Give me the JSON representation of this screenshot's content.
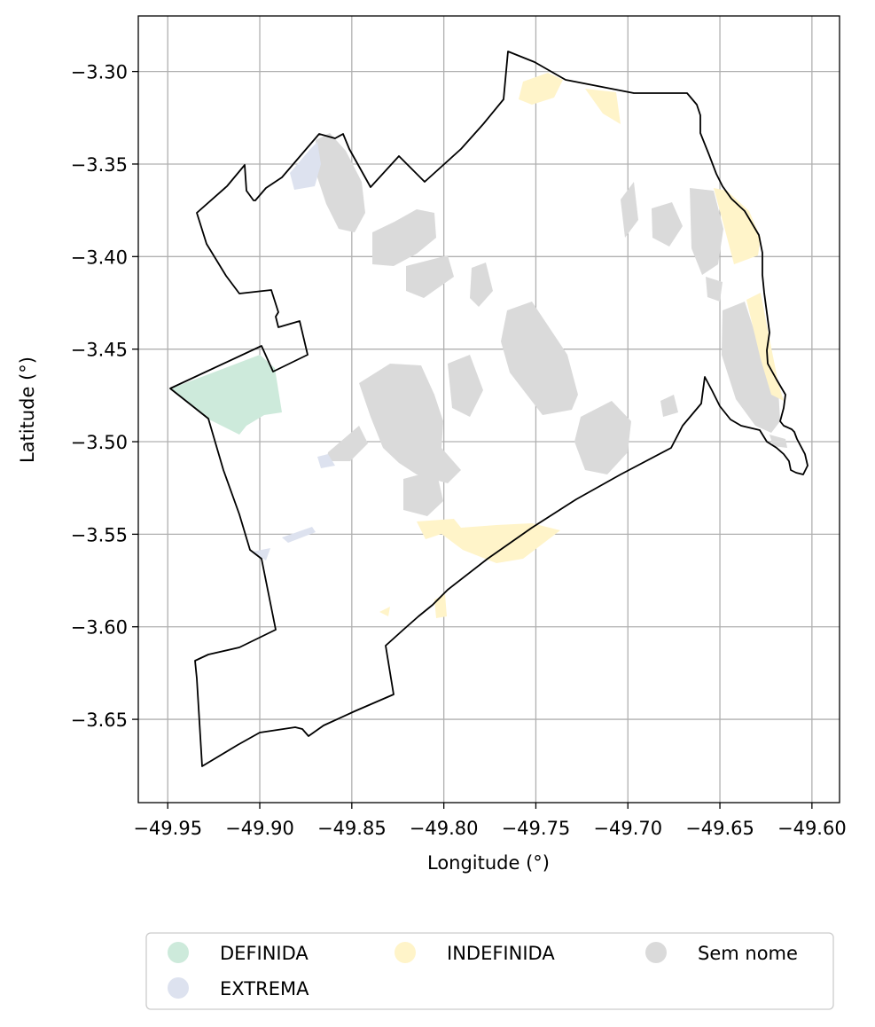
{
  "map": {
    "xlabel": "Longitude (°)",
    "ylabel": "Latitude (°)",
    "xlim": [
      -49.966,
      -49.585
    ],
    "ylim": [
      -3.695,
      -3.27
    ],
    "x_ticks": [
      -49.95,
      -49.9,
      -49.85,
      -49.8,
      -49.75,
      -49.7,
      -49.65,
      -49.6
    ],
    "x_tick_labels": [
      "−49.95",
      "−49.90",
      "−49.85",
      "−49.80",
      "−49.75",
      "−49.70",
      "−49.65",
      "−49.60"
    ],
    "y_ticks": [
      -3.3,
      -3.35,
      -3.4,
      -3.45,
      -3.5,
      -3.55,
      -3.6,
      -3.65
    ],
    "y_tick_labels": [
      "−3.30",
      "−3.35",
      "−3.40",
      "−3.45",
      "−3.50",
      "−3.55",
      "−3.60",
      "−3.65"
    ],
    "grid": true,
    "boundary_color": "#000000"
  },
  "legend": {
    "placement": "bottom-center",
    "items": [
      {
        "label": "DEFINIDA",
        "color": "#cdeadb"
      },
      {
        "label": "EXTREMA",
        "color": "#dde2ef"
      },
      {
        "label": "INDEFINIDA",
        "color": "#fff4c9"
      },
      {
        "label": "Sem nome",
        "color": "#dadada"
      }
    ]
  }
}
